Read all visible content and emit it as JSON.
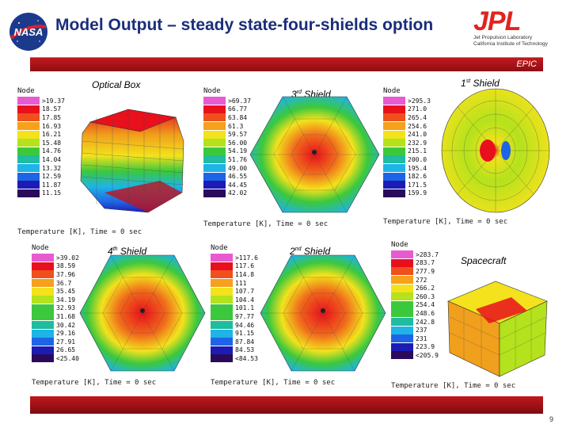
{
  "slide": {
    "title": "Model Output – steady state-four-shields option",
    "section_tag": "EPIC",
    "page_number": "9"
  },
  "logos": {
    "nasa": "NASA",
    "jpl_mark": "JPL",
    "jpl_line1": "Jet Propulsion Laboratory",
    "jpl_line2": "California Institute of Technology"
  },
  "legend_colors": [
    "#e85ad0",
    "#e8101c",
    "#f0501c",
    "#f6a01c",
    "#f3e21c",
    "#b4e21c",
    "#3cc83c",
    "#1ebca0",
    "#1eb4e6",
    "#1e64e6",
    "#1c1cb4",
    "#2a0a5a"
  ],
  "panels": {
    "optical_box": {
      "label": "Optical Box",
      "node": "Node",
      "values": [
        ">19.37",
        "18.57",
        "17.85",
        "16.93",
        "16.21",
        "15.48",
        "14.76",
        "14.04",
        "13.32",
        "12.59",
        "11.87",
        "11.15"
      ],
      "caption": "Temperature [K], Time = 0 sec"
    },
    "shield3": {
      "label_num": "3",
      "label_sup": "rd",
      "label_text": "Shield",
      "node": "Node",
      "values": [
        ">69.37",
        "66.77",
        "63.84",
        "61.3",
        "59.57",
        "56.00",
        "54.19",
        "51.76",
        "49.00",
        "46.55",
        "44.45",
        "42.02"
      ],
      "caption": "Temperature [K], Time = 0 sec"
    },
    "shield1": {
      "label_num": "1",
      "label_sup": "st",
      "label_text": "Shield",
      "node": "Node",
      "values": [
        ">295.3",
        "271.0",
        "265.4",
        "254.6",
        "241.0",
        "232.9",
        "215.1",
        "200.0",
        "195.4",
        "182.6",
        "171.5",
        "159.9"
      ],
      "caption": "Temperature [K], Time = 0 sec"
    },
    "shield4": {
      "label_num": "4",
      "label_sup": "th",
      "label_text": "Shield",
      "node": "Node",
      "values": [
        ">39.02",
        "38.59",
        "37.96",
        "36.7",
        "35.45",
        "34.19",
        "32.93",
        "31.68",
        "30.42",
        "29.16",
        "27.91",
        "26.65",
        "<25.40"
      ],
      "caption": "Temperature [K], Time = 0 sec"
    },
    "shield2": {
      "label_num": "2",
      "label_sup": "nd",
      "label_text": "Shield",
      "node": "Node",
      "values": [
        ">117.6",
        "117.6",
        "114.8",
        "111",
        "107.7",
        "104.4",
        "101.1",
        "97.77",
        "94.46",
        "91.15",
        "87.84",
        "84.53",
        "<84.53"
      ],
      "caption": "Temperature [K], Time = 0 sec"
    },
    "spacecraft": {
      "label": "Spacecraft",
      "node": "Node",
      "values": [
        ">283.7",
        "283.7",
        "277.9",
        "272",
        "266.2",
        "260.3",
        "254.4",
        "248.6",
        "242.8",
        "237",
        "231",
        "223.9",
        "<205.9"
      ],
      "caption": "Temperature [K], Time = 0 sec"
    }
  }
}
